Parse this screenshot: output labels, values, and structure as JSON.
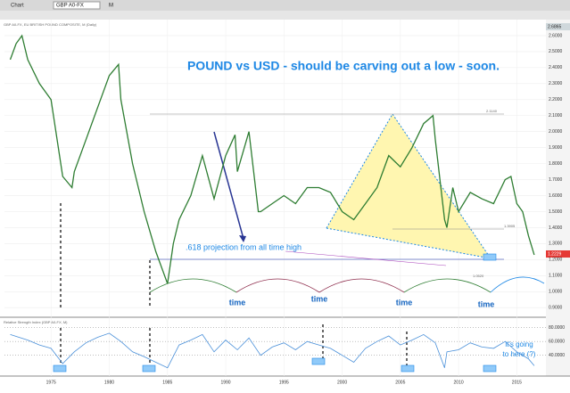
{
  "toolbar": {
    "window_label": "Chart",
    "symbol": "GBP A0-FX",
    "period": "M"
  },
  "chart_data": [
    {
      "type": "line",
      "title": "POUND vs USD - should be carving out a low - soon.",
      "subtitle": "GBP A0-FX, EU BRITISH POUND COMPOSITE, M (Daily)",
      "annotations": {
        "projection": ".618 projection from all time high",
        "time": "time",
        "going": "it's going",
        "here": "to here (?)",
        "level_high": "2.1140",
        "level_mid": "1.3905",
        "level_low": "1.0520",
        "last_price": "1.2229",
        "top_price": "2.6865"
      },
      "series": [
        {
          "name": "GBP A0-FX",
          "color": "#2e7d32",
          "x": [
            1971.5,
            1972,
            1972.5,
            1973,
            1974,
            1975,
            1976,
            1976.8,
            1977,
            1978,
            1979,
            1980,
            1980.8,
            1981,
            1982,
            1983,
            1984,
            1985,
            1985.5,
            1986,
            1987,
            1988,
            1989,
            1990,
            1990.8,
            1991,
            1992,
            1992.8,
            1993,
            1994,
            1995,
            1996,
            1997,
            1998,
            1999,
            2000,
            2001,
            2002,
            2003,
            2004,
            2005,
            2006,
            2007,
            2007.8,
            2008,
            2008.8,
            2009,
            2009.5,
            2010,
            2011,
            2012,
            2013,
            2014,
            2014.5,
            2015,
            2015.5,
            2016,
            2016.5
          ],
          "values": [
            2.45,
            2.55,
            2.6,
            2.45,
            2.3,
            2.2,
            1.72,
            1.65,
            1.75,
            1.95,
            2.15,
            2.35,
            2.42,
            2.2,
            1.8,
            1.5,
            1.25,
            1.05,
            1.3,
            1.45,
            1.6,
            1.85,
            1.58,
            1.85,
            1.98,
            1.75,
            2.0,
            1.5,
            1.5,
            1.55,
            1.6,
            1.55,
            1.65,
            1.65,
            1.62,
            1.5,
            1.45,
            1.55,
            1.65,
            1.85,
            1.78,
            1.9,
            2.05,
            2.1,
            1.95,
            1.45,
            1.4,
            1.65,
            1.5,
            1.62,
            1.58,
            1.55,
            1.7,
            1.72,
            1.55,
            1.5,
            1.35,
            1.23
          ]
        }
      ],
      "xlim": [
        1971,
        2017.5
      ],
      "xticks": [
        1975,
        1980,
        1985,
        1990,
        1995,
        2000,
        2005,
        2010,
        2015
      ],
      "ylim": [
        0.84,
        2.7
      ],
      "yticks": [
        {
          "value": 0.9,
          "label": "0.9000"
        },
        {
          "value": 1.0,
          "label": "1.0000"
        },
        {
          "value": 1.1,
          "label": "1.1000"
        },
        {
          "value": 1.2,
          "label": "1.2000"
        },
        {
          "value": 1.3,
          "label": "1.3000"
        },
        {
          "value": 1.4,
          "label": "1.4000"
        },
        {
          "value": 1.5,
          "label": "1.5000"
        },
        {
          "value": 1.6,
          "label": "1.6000"
        },
        {
          "value": 1.7,
          "label": "1.7000"
        },
        {
          "value": 1.8,
          "label": "1.8000"
        },
        {
          "value": 1.9,
          "label": "1.9000"
        },
        {
          "value": 2.0,
          "label": "2.0000"
        },
        {
          "value": 2.1,
          "label": "2.1000"
        },
        {
          "value": 2.2,
          "label": "2.2000"
        },
        {
          "value": 2.3,
          "label": "2.3000"
        },
        {
          "value": 2.4,
          "label": "2.4000"
        },
        {
          "value": 2.5,
          "label": "2.5000"
        },
        {
          "value": 2.6,
          "label": "2.6000"
        }
      ],
      "grid": true
    },
    {
      "type": "line",
      "title": "Relative Strength Index (GBP A0-FX, M)",
      "series": [
        {
          "name": "RSI",
          "color": "#4a90d9",
          "x": [
            1971.5,
            1973,
            1974,
            1975,
            1976,
            1977,
            1978,
            1979,
            1980,
            1981,
            1982,
            1983,
            1984,
            1985,
            1986,
            1987,
            1988,
            1989,
            1990,
            1991,
            1992,
            1993,
            1994,
            1995,
            1996,
            1997,
            1998,
            1999,
            2000,
            2001,
            2002,
            2003,
            2004,
            2005,
            2006,
            2007,
            2008,
            2008.8,
            2009,
            2010,
            2011,
            2012,
            2013,
            2014,
            2015,
            2016,
            2016.5
          ],
          "values": [
            70,
            62,
            55,
            50,
            28,
            45,
            58,
            66,
            72,
            60,
            45,
            38,
            30,
            22,
            55,
            62,
            70,
            45,
            62,
            48,
            65,
            40,
            52,
            58,
            48,
            60,
            55,
            50,
            40,
            30,
            50,
            60,
            68,
            55,
            62,
            70,
            58,
            22,
            45,
            48,
            58,
            52,
            50,
            60,
            45,
            35,
            25
          ]
        }
      ],
      "xlim": [
        1971,
        2017.5
      ],
      "ylim": [
        10,
        95
      ],
      "yticks": [
        {
          "value": 80,
          "label": "80.0000"
        },
        {
          "value": 60,
          "label": "60.0000"
        },
        {
          "value": 40,
          "label": "40.0000"
        }
      ]
    }
  ]
}
